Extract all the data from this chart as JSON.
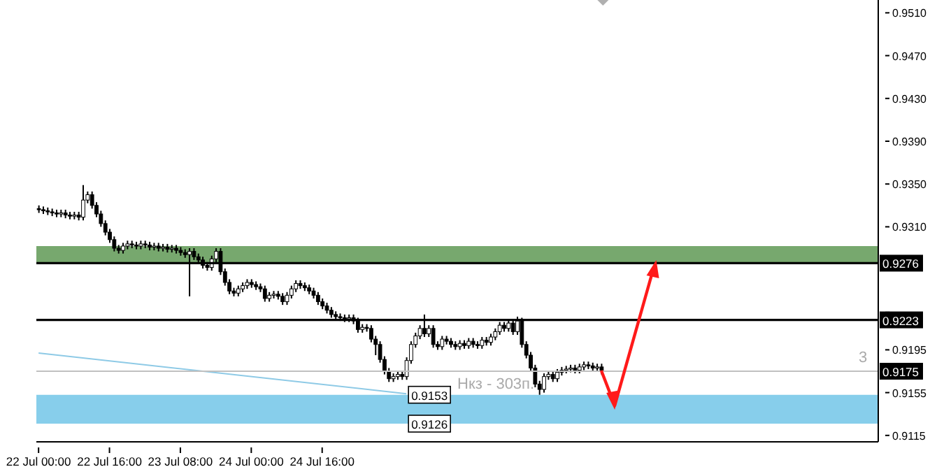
{
  "chart_data": {
    "type": "candlestick",
    "categories": [
      "22 Jul 00:00",
      null,
      null,
      null,
      null,
      null,
      null,
      null,
      null,
      null,
      null,
      null,
      null,
      null,
      null,
      null,
      "22 Jul 16:00",
      null,
      null,
      null,
      null,
      null,
      null,
      null,
      null,
      null,
      null,
      null,
      null,
      null,
      null,
      null,
      "23 Jul 08:00",
      null,
      null,
      null,
      null,
      null,
      null,
      null,
      null,
      null,
      null,
      null,
      null,
      null,
      null,
      null,
      "24 Jul 00:00",
      null,
      null,
      null,
      null,
      null,
      null,
      null,
      null,
      null,
      null,
      null,
      null,
      null,
      null,
      null,
      "24 Jul 16:00",
      null,
      null,
      null,
      null,
      null,
      null,
      null,
      null,
      null,
      null,
      null,
      null,
      null,
      null,
      null,
      null,
      null,
      null,
      null,
      null,
      null,
      null,
      null,
      null,
      null,
      null,
      null,
      null,
      null,
      null,
      null,
      null,
      null,
      null,
      null,
      null,
      null,
      null,
      null,
      null,
      null,
      null,
      null,
      null,
      null,
      null,
      null,
      null,
      null,
      null,
      null,
      null,
      null,
      null,
      null,
      null,
      null,
      null,
      null,
      null,
      null,
      null,
      null,
      null,
      null,
      null,
      null,
      null,
      null,
      null,
      null,
      null,
      null,
      null,
      null,
      null,
      null,
      null,
      null,
      null,
      null,
      null,
      null,
      null,
      null,
      null,
      null,
      null,
      null,
      null,
      null,
      null,
      null,
      null,
      null,
      null,
      null,
      null,
      null,
      null,
      null,
      null,
      null,
      null,
      null,
      null,
      null,
      null,
      null,
      null,
      null,
      null,
      null,
      null,
      null,
      null,
      null,
      null,
      null,
      null,
      null,
      null,
      null,
      null,
      null
    ],
    "ohlc": [
      [
        0.9327,
        0.933,
        0.9323,
        0.9326
      ],
      [
        0.9326,
        0.9329,
        0.9322,
        0.9325
      ],
      [
        0.9325,
        0.9328,
        0.9321,
        0.9324
      ],
      [
        0.9324,
        0.9327,
        0.932,
        0.9323
      ],
      [
        0.9323,
        0.9326,
        0.9319,
        0.9322
      ],
      [
        0.9322,
        0.9326,
        0.9319,
        0.9323
      ],
      [
        0.9323,
        0.9326,
        0.9318,
        0.9321
      ],
      [
        0.9321,
        0.9324,
        0.9317,
        0.932
      ],
      [
        0.932,
        0.9324,
        0.9317,
        0.9321
      ],
      [
        0.9321,
        0.9324,
        0.9316,
        0.9319
      ],
      [
        0.9319,
        0.9349,
        0.9316,
        0.9335
      ],
      [
        0.9335,
        0.9343,
        0.9332,
        0.934
      ],
      [
        0.934,
        0.9343,
        0.9327,
        0.933
      ],
      [
        0.933,
        0.9333,
        0.9319,
        0.9322
      ],
      [
        0.9322,
        0.9325,
        0.931,
        0.9313
      ],
      [
        0.9313,
        0.9316,
        0.9302,
        0.9305
      ],
      [
        0.9305,
        0.9308,
        0.9295,
        0.9298
      ],
      [
        0.9298,
        0.9301,
        0.9287,
        0.929
      ],
      [
        0.929,
        0.9293,
        0.9285,
        0.9288
      ],
      [
        0.9288,
        0.9295,
        0.9285,
        0.9292
      ],
      [
        0.9292,
        0.9297,
        0.9289,
        0.9294
      ],
      [
        0.9294,
        0.9297,
        0.929,
        0.9293
      ],
      [
        0.9293,
        0.9296,
        0.9289,
        0.9292
      ],
      [
        0.9292,
        0.9297,
        0.9289,
        0.9294
      ],
      [
        0.9294,
        0.9297,
        0.929,
        0.9293
      ],
      [
        0.9293,
        0.9296,
        0.9288,
        0.9291
      ],
      [
        0.9291,
        0.9295,
        0.9288,
        0.9292
      ],
      [
        0.9292,
        0.9295,
        0.9287,
        0.929
      ],
      [
        0.929,
        0.9294,
        0.9287,
        0.9291
      ],
      [
        0.9291,
        0.9294,
        0.9286,
        0.9289
      ],
      [
        0.9289,
        0.9293,
        0.9286,
        0.929
      ],
      [
        0.929,
        0.9293,
        0.9285,
        0.9288
      ],
      [
        0.9288,
        0.9291,
        0.9283,
        0.9286
      ],
      [
        0.9286,
        0.9289,
        0.9281,
        0.9284
      ],
      [
        0.9284,
        0.929,
        0.9245,
        0.9287
      ],
      [
        0.9287,
        0.929,
        0.9279,
        0.9282
      ],
      [
        0.9282,
        0.9285,
        0.9276,
        0.9279
      ],
      [
        0.9279,
        0.9282,
        0.9271,
        0.9274
      ],
      [
        0.9274,
        0.9277,
        0.9269,
        0.9272
      ],
      [
        0.9272,
        0.9283,
        0.9269,
        0.928
      ],
      [
        0.928,
        0.929,
        0.9277,
        0.9287
      ],
      [
        0.9287,
        0.929,
        0.9265,
        0.9268
      ],
      [
        0.9268,
        0.9271,
        0.9255,
        0.9258
      ],
      [
        0.9258,
        0.9261,
        0.9247,
        0.925
      ],
      [
        0.925,
        0.9253,
        0.9245,
        0.9248
      ],
      [
        0.9248,
        0.9255,
        0.9245,
        0.9252
      ],
      [
        0.9252,
        0.9258,
        0.9249,
        0.9255
      ],
      [
        0.9255,
        0.9261,
        0.9252,
        0.9258
      ],
      [
        0.9258,
        0.9261,
        0.9253,
        0.9256
      ],
      [
        0.9256,
        0.9259,
        0.9251,
        0.9254
      ],
      [
        0.9254,
        0.9257,
        0.9249,
        0.9252
      ],
      [
        0.9252,
        0.9255,
        0.924,
        0.9243
      ],
      [
        0.9243,
        0.9249,
        0.924,
        0.9246
      ],
      [
        0.9246,
        0.925,
        0.9243,
        0.9247
      ],
      [
        0.9247,
        0.925,
        0.9242,
        0.9245
      ],
      [
        0.9245,
        0.9248,
        0.9237,
        0.924
      ],
      [
        0.924,
        0.9249,
        0.9237,
        0.9246
      ],
      [
        0.9246,
        0.9255,
        0.9243,
        0.9252
      ],
      [
        0.9252,
        0.926,
        0.9249,
        0.9257
      ],
      [
        0.9257,
        0.926,
        0.9252,
        0.9255
      ],
      [
        0.9255,
        0.9258,
        0.925,
        0.9253
      ],
      [
        0.9253,
        0.9256,
        0.9247,
        0.925
      ],
      [
        0.925,
        0.9253,
        0.9243,
        0.9246
      ],
      [
        0.9246,
        0.9249,
        0.9237,
        0.924
      ],
      [
        0.924,
        0.9243,
        0.9233,
        0.9236
      ],
      [
        0.9236,
        0.9239,
        0.9229,
        0.9232
      ],
      [
        0.9232,
        0.9235,
        0.9225,
        0.9228
      ],
      [
        0.9228,
        0.9231,
        0.9223,
        0.9226
      ],
      [
        0.9226,
        0.9229,
        0.9222,
        0.9225
      ],
      [
        0.9225,
        0.9228,
        0.9221,
        0.9224
      ],
      [
        0.9224,
        0.9228,
        0.9221,
        0.9225
      ],
      [
        0.9225,
        0.9228,
        0.9219,
        0.9222
      ],
      [
        0.9222,
        0.9225,
        0.9211,
        0.9214
      ],
      [
        0.9214,
        0.9219,
        0.9211,
        0.9216
      ],
      [
        0.9216,
        0.9219,
        0.9212,
        0.9215
      ],
      [
        0.9215,
        0.9218,
        0.9202,
        0.9205
      ],
      [
        0.9205,
        0.9208,
        0.919,
        0.92
      ],
      [
        0.92,
        0.9203,
        0.9183,
        0.9186
      ],
      [
        0.9186,
        0.9189,
        0.9172,
        0.9175
      ],
      [
        0.9175,
        0.9178,
        0.9165,
        0.9168
      ],
      [
        0.9168,
        0.9173,
        0.9165,
        0.917
      ],
      [
        0.917,
        0.9175,
        0.9167,
        0.9172
      ],
      [
        0.9172,
        0.9175,
        0.9167,
        0.917
      ],
      [
        0.917,
        0.9188,
        0.9167,
        0.9185
      ],
      [
        0.9185,
        0.9203,
        0.9182,
        0.92
      ],
      [
        0.92,
        0.9211,
        0.9197,
        0.9208
      ],
      [
        0.9208,
        0.9218,
        0.9205,
        0.9215
      ],
      [
        0.9215,
        0.9228,
        0.9207,
        0.921
      ],
      [
        0.921,
        0.9218,
        0.9207,
        0.9215
      ],
      [
        0.9215,
        0.9218,
        0.9197,
        0.92
      ],
      [
        0.92,
        0.9203,
        0.9195,
        0.9198
      ],
      [
        0.9198,
        0.9208,
        0.9195,
        0.9205
      ],
      [
        0.9205,
        0.9208,
        0.92,
        0.9203
      ],
      [
        0.9203,
        0.9206,
        0.9197,
        0.92
      ],
      [
        0.92,
        0.9203,
        0.9195,
        0.9198
      ],
      [
        0.9198,
        0.9204,
        0.9195,
        0.9201
      ],
      [
        0.9201,
        0.9204,
        0.9196,
        0.9199
      ],
      [
        0.9199,
        0.9206,
        0.9196,
        0.9203
      ],
      [
        0.9203,
        0.9206,
        0.9197,
        0.92
      ],
      [
        0.92,
        0.9203,
        0.9196,
        0.9199
      ],
      [
        0.9199,
        0.9207,
        0.9196,
        0.9204
      ],
      [
        0.9204,
        0.9207,
        0.9199,
        0.9202
      ],
      [
        0.9202,
        0.921,
        0.9199,
        0.9207
      ],
      [
        0.9207,
        0.9215,
        0.9204,
        0.9212
      ],
      [
        0.9212,
        0.9221,
        0.9209,
        0.9218
      ],
      [
        0.9218,
        0.9221,
        0.9212,
        0.9215
      ],
      [
        0.9215,
        0.9223,
        0.9212,
        0.922
      ],
      [
        0.922,
        0.9223,
        0.9209,
        0.9212
      ],
      [
        0.9212,
        0.9226,
        0.9209,
        0.9222
      ],
      [
        0.9222,
        0.9225,
        0.9197,
        0.92
      ],
      [
        0.92,
        0.9203,
        0.9187,
        0.919
      ],
      [
        0.919,
        0.9193,
        0.9175,
        0.9178
      ],
      [
        0.9178,
        0.9181,
        0.916,
        0.9163
      ],
      [
        0.9163,
        0.9166,
        0.9153,
        0.9158
      ],
      [
        0.9158,
        0.9173,
        0.9155,
        0.917
      ],
      [
        0.917,
        0.9175,
        0.9167,
        0.9172
      ],
      [
        0.9172,
        0.9175,
        0.9165,
        0.9168
      ],
      [
        0.9168,
        0.9177,
        0.9165,
        0.9174
      ],
      [
        0.9174,
        0.9179,
        0.9171,
        0.9176
      ],
      [
        0.9176,
        0.918,
        0.9173,
        0.9177
      ],
      [
        0.9177,
        0.9181,
        0.9174,
        0.9178
      ],
      [
        0.9178,
        0.9181,
        0.9173,
        0.9176
      ],
      [
        0.9176,
        0.9182,
        0.9173,
        0.9179
      ],
      [
        0.9179,
        0.9184,
        0.9176,
        0.9181
      ],
      [
        0.9181,
        0.9184,
        0.9177,
        0.918
      ],
      [
        0.918,
        0.9183,
        0.9175,
        0.9178
      ],
      [
        0.9178,
        0.9182,
        0.9175,
        0.9179
      ],
      [
        0.9179,
        0.9182,
        0.9172,
        0.9175
      ],
      null,
      null,
      null,
      null,
      null,
      null,
      null,
      null,
      null,
      null,
      null,
      null,
      null,
      null,
      null,
      null,
      null,
      null,
      null,
      null,
      null,
      null,
      null,
      null,
      null,
      null,
      null,
      null,
      null,
      null,
      null,
      null,
      null,
      null,
      null,
      null,
      null,
      null,
      null,
      null,
      null,
      null,
      null,
      null,
      null,
      null,
      null,
      null,
      null,
      null,
      null,
      null,
      null,
      null,
      null,
      null,
      null,
      null,
      null,
      null,
      null,
      null
    ],
    "series": [
      {
        "type": "line",
        "color": "#8ecae6",
        "values": [
          0.9192,
          null,
          null,
          null,
          null,
          null,
          null,
          null,
          null,
          null,
          null,
          null,
          null,
          null,
          null,
          null,
          null,
          null,
          null,
          null,
          null,
          null,
          null,
          null,
          null,
          null,
          null,
          null,
          null,
          null,
          null,
          null,
          null,
          null,
          null,
          null,
          null,
          null,
          null,
          null,
          null,
          null,
          null,
          null,
          null,
          null,
          null,
          null,
          null,
          null,
          null,
          null,
          null,
          null,
          null,
          null,
          null,
          null,
          null,
          null,
          null,
          null,
          null,
          null,
          null,
          null,
          null,
          null,
          null,
          null,
          null,
          null,
          null,
          null,
          null,
          null,
          null,
          null,
          null,
          null,
          null,
          null,
          null,
          0.9154,
          null,
          null,
          null,
          null,
          null,
          null,
          null,
          null,
          null,
          null,
          null,
          null,
          null,
          null,
          null,
          null,
          null,
          null,
          null,
          null,
          null,
          null,
          null,
          null,
          null,
          null,
          null,
          null,
          null,
          null,
          null,
          null,
          null,
          null,
          null,
          null,
          null,
          null,
          null,
          null,
          null,
          null,
          null,
          null,
          null,
          null,
          null,
          null,
          null,
          null,
          null,
          null,
          null,
          null,
          null,
          null,
          null,
          null,
          null,
          null,
          null,
          null,
          null,
          null,
          null,
          null,
          null,
          null,
          null,
          null,
          null,
          null,
          null,
          null,
          null,
          null,
          null,
          null,
          null,
          null,
          null,
          null,
          null,
          null,
          null,
          null,
          null,
          null,
          null,
          null,
          null,
          null,
          null,
          null,
          null,
          null,
          null,
          null,
          null,
          null,
          null,
          null,
          null,
          null,
          null,
          null
        ]
      }
    ],
    "ylim": [
      0.9109,
      0.9522
    ],
    "yticks": [
      0.9115,
      0.9155,
      0.9195,
      {
        "value": 0.923,
        "label": null
      },
      {
        "value": 0.927,
        "label": null
      },
      {
        "value": 0.931,
        "label": "0.9310"
      },
      {
        "value": 0.935,
        "label": "0.9350"
      },
      {
        "value": 0.939,
        "label": "0.9390"
      },
      {
        "value": 0.943,
        "label": "0.9430"
      },
      {
        "value": 0.947,
        "label": "0.9470"
      },
      {
        "value": 0.951,
        "label": "0.9510"
      }
    ],
    "ref_lines": [
      {
        "axis": "y",
        "value": 0.9276,
        "label": "0.9276",
        "color": "#000000"
      },
      {
        "axis": "y",
        "value": 0.9223,
        "label": "0.9223",
        "color": "#000000"
      },
      {
        "axis": "y",
        "value": 0.9175,
        "label": "0.9175",
        "color": "#c0c0c0"
      }
    ],
    "bands": [
      {
        "axis": "y",
        "from": 0.9277,
        "to": 0.9292,
        "color": "#77a86e"
      },
      {
        "axis": "y",
        "from": 0.9126,
        "to": 0.9153,
        "color": "#87ceeb"
      }
    ],
    "annotations": [
      {
        "text": "0.9153",
        "y": 0.9153
      },
      {
        "text": "0.9126",
        "y": 0.9126
      },
      "Нкз - 303п.",
      "3"
    ]
  }
}
